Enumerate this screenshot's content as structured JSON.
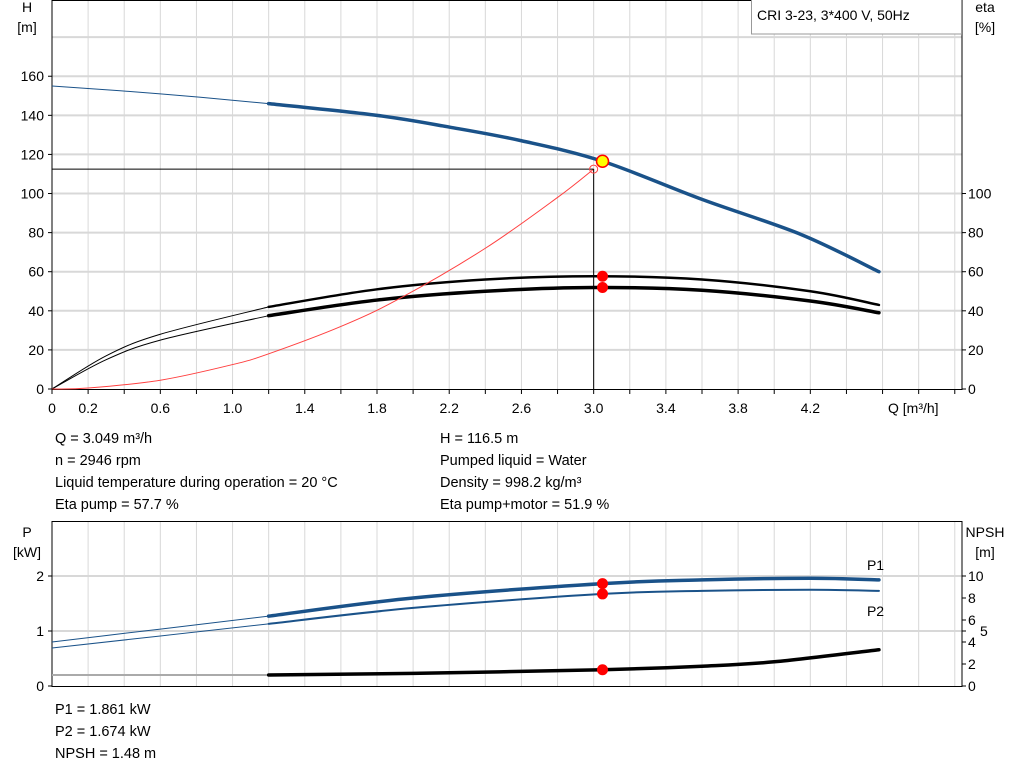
{
  "title": "CRI 3-23, 3*400 V, 50Hz",
  "colors": {
    "head": "#1a5289",
    "eta": "#000000",
    "system": "#ff4040",
    "point": "#ff0000",
    "duty": "#ffff00",
    "grid": "#d8d8d8"
  },
  "chart_data": [
    {
      "type": "line",
      "xlabel": "Q [m³/h]",
      "ylabel_left": [
        "H",
        "[m]"
      ],
      "ylabel_right": [
        "eta",
        "[%]"
      ],
      "xlim": [
        0,
        5.04
      ],
      "ylim_left": [
        0,
        199
      ],
      "ylim_right": [
        0,
        199
      ],
      "grid": true,
      "x_tick_labels": [
        "0",
        "0.2",
        "0.6",
        "1.0",
        "1.4",
        "1.8",
        "2.2",
        "2.6",
        "3.0",
        "3.4",
        "3.8",
        "4.2"
      ],
      "y_left_ticks": [
        0,
        20,
        40,
        60,
        80,
        100,
        120,
        140,
        160
      ],
      "y_right_ticks": [
        0,
        20,
        40,
        60,
        80,
        100
      ],
      "series": [
        {
          "id": "head",
          "axis": "left",
          "x": [
            0,
            0.6,
            1.2,
            1.8,
            2.2,
            2.6,
            3.049,
            3.6,
            4.15,
            4.58
          ],
          "y": [
            155,
            151,
            146,
            140,
            134,
            127,
            116.5,
            97,
            79,
            60
          ],
          "thin_until": 1.2
        },
        {
          "id": "eta-pump",
          "axis": "right",
          "x": [
            0,
            0.3,
            0.6,
            1.2,
            1.8,
            2.4,
            3.0,
            3.6,
            4.2,
            4.58
          ],
          "y": [
            0,
            17,
            28,
            42,
            51,
            56,
            57.7,
            56,
            50,
            43
          ],
          "thin_until": 1.2
        },
        {
          "id": "eta-pump-motor",
          "axis": "right",
          "x": [
            0,
            0.3,
            0.6,
            1.2,
            1.8,
            2.4,
            3.0,
            3.6,
            4.2,
            4.58
          ],
          "y": [
            0,
            15,
            25,
            37.5,
            45.5,
            50,
            51.9,
            50.5,
            45,
            39
          ],
          "thin_until": 1.2
        },
        {
          "id": "system-curve",
          "axis": "left",
          "x": [
            0,
            0.2,
            0.6,
            1.0,
            1.2,
            1.6,
            1.93,
            2.4,
            2.8,
            3.0
          ],
          "y": [
            0,
            0.5,
            4.5,
            12.5,
            18,
            32,
            46.5,
            72,
            98,
            112.5
          ]
        }
      ],
      "duty_point": {
        "Q": 3.049,
        "H": 116.5,
        "eta_pump": 57.7,
        "eta_pump_motor": 51.9
      },
      "reference_lines": {
        "H": 112.5,
        "Q": 3.0
      }
    },
    {
      "type": "line",
      "ylabel_left": [
        "P",
        "[kW]"
      ],
      "ylabel_right": [
        "NPSH",
        "[m]"
      ],
      "xlim": [
        0,
        5.04
      ],
      "ylim_left": [
        0,
        3.0
      ],
      "ylim_right": [
        0,
        15
      ],
      "grid": true,
      "y_left_ticks": [
        0,
        1,
        2
      ],
      "y_right_ticks": [
        0,
        2,
        4,
        5,
        6,
        8,
        10
      ],
      "series": [
        {
          "id": "P1",
          "name": "P1",
          "axis": "left",
          "x": [
            0,
            1.2,
            2.0,
            3.049,
            3.6,
            4.2,
            4.58
          ],
          "y": [
            0.8,
            1.27,
            1.6,
            1.861,
            1.93,
            1.96,
            1.93
          ],
          "thin_until": 1.2
        },
        {
          "id": "P2",
          "name": "P2",
          "axis": "left",
          "x": [
            0,
            1.2,
            2.0,
            3.049,
            3.6,
            4.2,
            4.58
          ],
          "y": [
            0.69,
            1.13,
            1.42,
            1.674,
            1.73,
            1.75,
            1.73
          ],
          "thin_until": 1.2
        },
        {
          "id": "NPSH",
          "axis": "right",
          "x": [
            0,
            1.2,
            2.0,
            3.049,
            3.6,
            4.0,
            4.58
          ],
          "y": [
            1.0,
            1.0,
            1.15,
            1.48,
            1.8,
            2.2,
            3.3
          ],
          "thin_until": 1.2
        }
      ],
      "duty_point": {
        "Q": 3.049,
        "P1": 1.861,
        "P2": 1.674,
        "NPSH": 1.48
      }
    }
  ],
  "info": {
    "q": "Q = 3.049 m³/h",
    "n": "n = 2946 rpm",
    "temp": "Liquid temperature during operation = 20 °C",
    "eta_pump": "Eta pump = 57.7 %",
    "h": "H = 116.5 m",
    "liquid": "Pumped liquid = Water",
    "density": "Density = 998.2 kg/m³",
    "eta_total": "Eta pump+motor = 51.9 %",
    "p1": "P1 = 1.861 kW",
    "p2": "P2 = 1.674 kW",
    "npsh": "NPSH = 1.48 m"
  }
}
